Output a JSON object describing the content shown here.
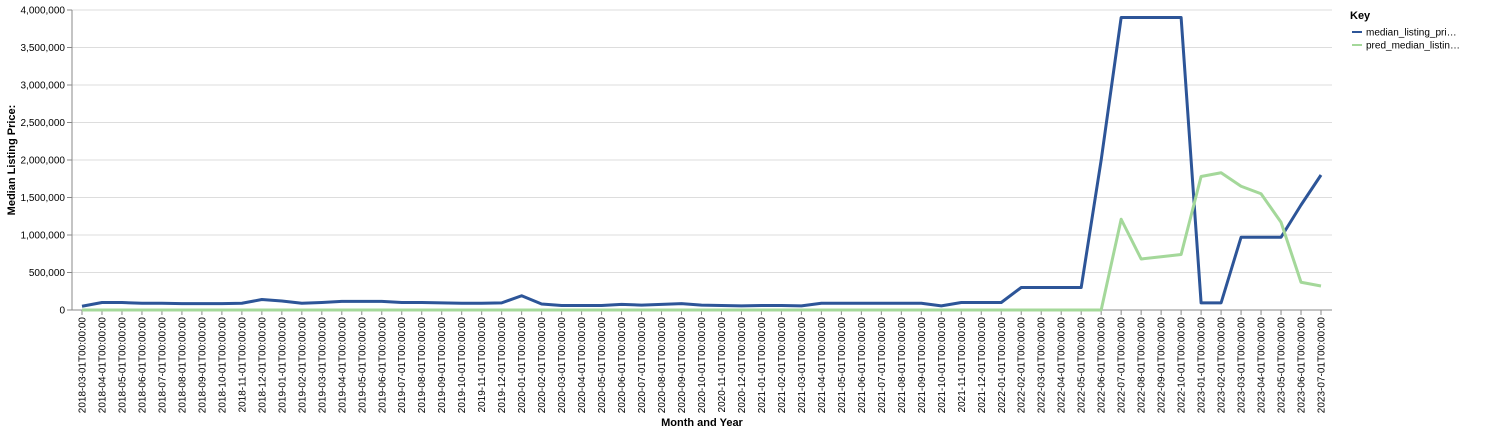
{
  "chart_data": {
    "type": "line",
    "x_label": "Month and Year",
    "y_label": "Median Listing Price:",
    "legend_title": "Key",
    "legend_position": "right",
    "grid": true,
    "categories": [
      "2018-03-01T00:00:00",
      "2018-04-01T00:00:00",
      "2018-05-01T00:00:00",
      "2018-06-01T00:00:00",
      "2018-07-01T00:00:00",
      "2018-08-01T00:00:00",
      "2018-09-01T00:00:00",
      "2018-10-01T00:00:00",
      "2018-11-01T00:00:00",
      "2018-12-01T00:00:00",
      "2019-01-01T00:00:00",
      "2019-02-01T00:00:00",
      "2019-03-01T00:00:00",
      "2019-04-01T00:00:00",
      "2019-05-01T00:00:00",
      "2019-06-01T00:00:00",
      "2019-07-01T00:00:00",
      "2019-08-01T00:00:00",
      "2019-09-01T00:00:00",
      "2019-10-01T00:00:00",
      "2019-11-01T00:00:00",
      "2019-12-01T00:00:00",
      "2020-01-01T00:00:00",
      "2020-02-01T00:00:00",
      "2020-03-01T00:00:00",
      "2020-04-01T00:00:00",
      "2020-05-01T00:00:00",
      "2020-06-01T00:00:00",
      "2020-07-01T00:00:00",
      "2020-08-01T00:00:00",
      "2020-09-01T00:00:00",
      "2020-10-01T00:00:00",
      "2020-11-01T00:00:00",
      "2020-12-01T00:00:00",
      "2021-01-01T00:00:00",
      "2021-02-01T00:00:00",
      "2021-03-01T00:00:00",
      "2021-04-01T00:00:00",
      "2021-05-01T00:00:00",
      "2021-06-01T00:00:00",
      "2021-07-01T00:00:00",
      "2021-08-01T00:00:00",
      "2021-09-01T00:00:00",
      "2021-10-01T00:00:00",
      "2021-11-01T00:00:00",
      "2021-12-01T00:00:00",
      "2022-01-01T00:00:00",
      "2022-02-01T00:00:00",
      "2022-03-01T00:00:00",
      "2022-04-01T00:00:00",
      "2022-05-01T00:00:00",
      "2022-06-01T00:00:00",
      "2022-07-01T00:00:00",
      "2022-08-01T00:00:00",
      "2022-09-01T00:00:00",
      "2022-10-01T00:00:00",
      "2023-01-01T00:00:00",
      "2023-02-01T00:00:00",
      "2023-03-01T00:00:00",
      "2023-04-01T00:00:00",
      "2023-05-01T00:00:00",
      "2023-06-01T00:00:00",
      "2023-07-01T00:00:00"
    ],
    "series": [
      {
        "name": "median_listing_pri…",
        "color": "#2d5598",
        "values": [
          50000,
          100000,
          100000,
          90000,
          90000,
          85000,
          85000,
          85000,
          90000,
          140000,
          120000,
          90000,
          100000,
          115000,
          115000,
          115000,
          100000,
          100000,
          95000,
          90000,
          90000,
          95000,
          190000,
          80000,
          60000,
          60000,
          60000,
          75000,
          65000,
          75000,
          85000,
          65000,
          60000,
          55000,
          60000,
          60000,
          55000,
          90000,
          90000,
          90000,
          90000,
          90000,
          90000,
          55000,
          100000,
          100000,
          100000,
          300000,
          300000,
          300000,
          300000,
          2000000,
          3900000,
          3900000,
          3900000,
          3900000,
          95000,
          95000,
          970000,
          970000,
          970000,
          1400000,
          1800000
        ]
      },
      {
        "name": "pred_median_listin…",
        "color": "#a4d89a",
        "values": [
          0,
          0,
          0,
          0,
          0,
          0,
          0,
          0,
          0,
          0,
          0,
          0,
          0,
          0,
          0,
          0,
          0,
          0,
          0,
          0,
          0,
          0,
          0,
          0,
          0,
          0,
          0,
          0,
          0,
          0,
          0,
          0,
          0,
          0,
          0,
          0,
          0,
          0,
          0,
          0,
          0,
          0,
          0,
          0,
          0,
          0,
          0,
          0,
          0,
          0,
          0,
          0,
          1210000,
          680000,
          710000,
          740000,
          1780000,
          1830000,
          1650000,
          1550000,
          1170000,
          370000,
          320000
        ]
      }
    ],
    "ylim": [
      0,
      4000000
    ],
    "yticks": [
      0,
      {
        "value": 500000,
        "label": "500,000"
      },
      {
        "value": 1000000,
        "label": "1,000,000"
      },
      {
        "value": 1500000,
        "label": "1,500,000"
      },
      {
        "value": 2000000,
        "label": "2,000,000"
      },
      {
        "value": 2500000,
        "label": "2,500,000"
      },
      {
        "value": 3000000,
        "label": "3,000,000"
      },
      {
        "value": 3500000,
        "label": "3,500,000"
      },
      {
        "value": 4000000,
        "label": "4,000,000"
      }
    ]
  }
}
